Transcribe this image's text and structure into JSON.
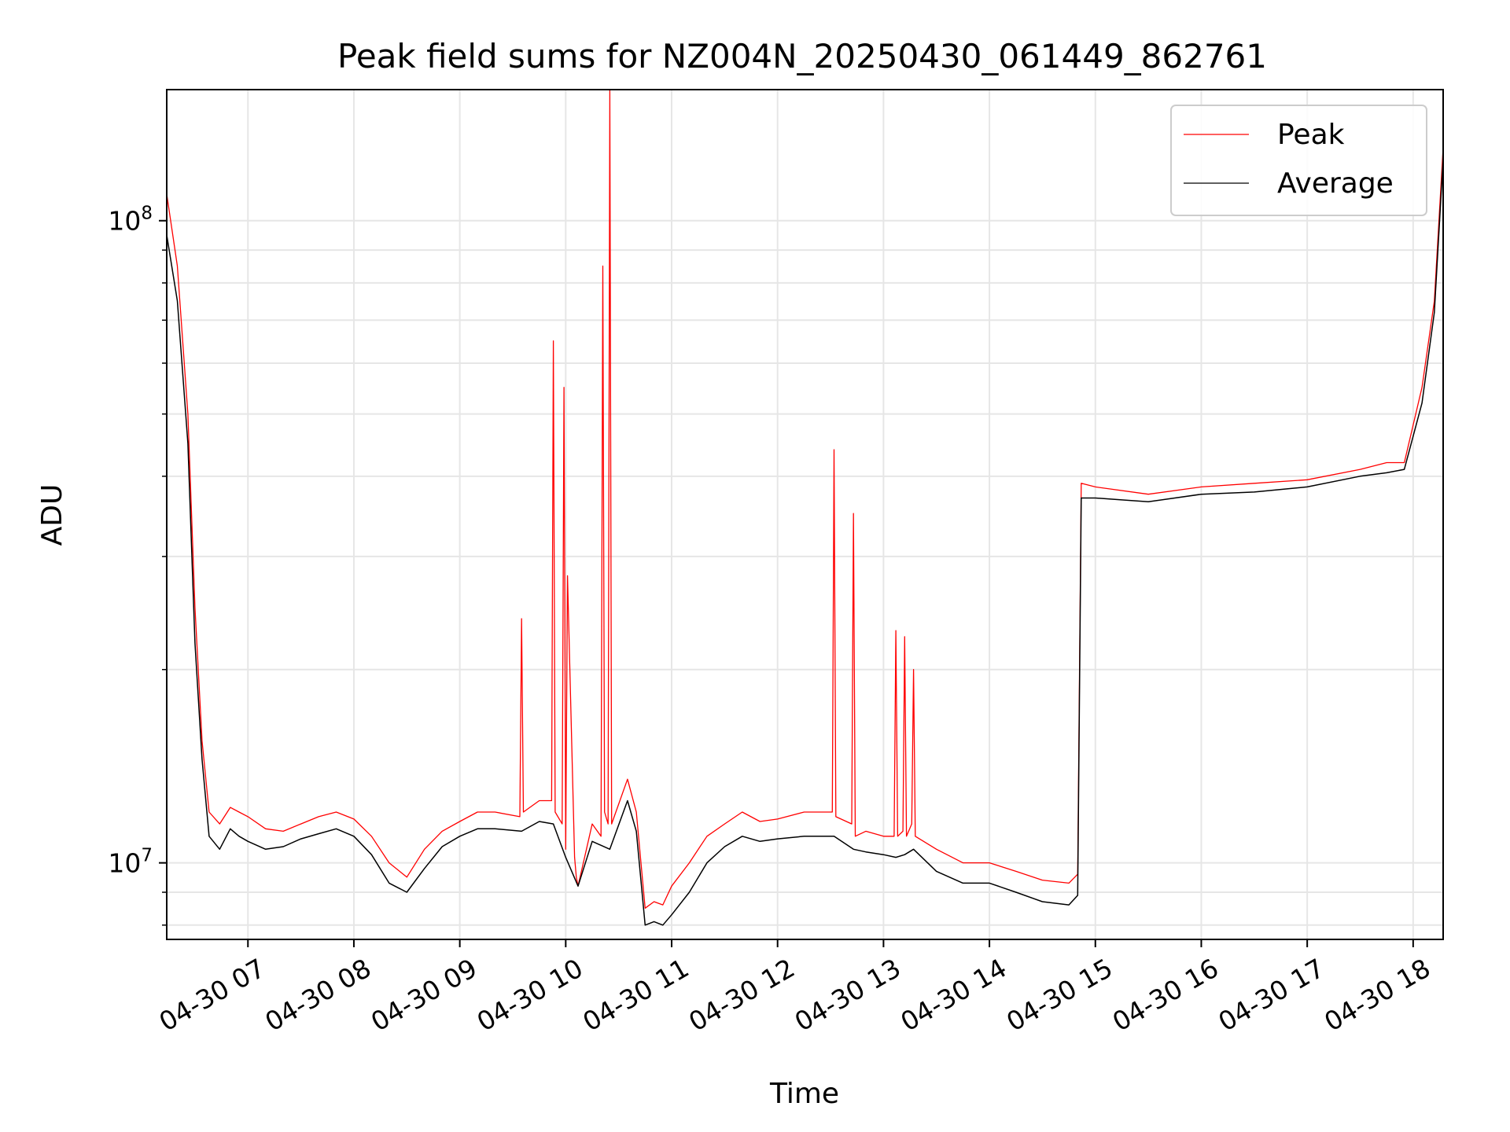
{
  "chart_data": {
    "type": "line",
    "title": "Peak field sums for NZ004N_20250430_061449_862761",
    "xlabel": "Time",
    "ylabel": "ADU",
    "yscale": "log",
    "ylim": [
      7600000,
      160000000
    ],
    "xlim": [
      "2025-04-30 06:14",
      "2025-04-30 18:17"
    ],
    "x_tick_labels": [
      "04-30 07",
      "04-30 08",
      "04-30 09",
      "04-30 10",
      "04-30 11",
      "04-30 12",
      "04-30 13",
      "04-30 14",
      "04-30 15",
      "04-30 16",
      "04-30 17",
      "04-30 18"
    ],
    "x_ticks": [
      "2025-04-30 07:00",
      "2025-04-30 08:00",
      "2025-04-30 09:00",
      "2025-04-30 10:00",
      "2025-04-30 11:00",
      "2025-04-30 12:00",
      "2025-04-30 13:00",
      "2025-04-30 14:00",
      "2025-04-30 15:00",
      "2025-04-30 16:00",
      "2025-04-30 17:00",
      "2025-04-30 18:00"
    ],
    "y_ticks": [
      {
        "value": 10000000,
        "label": "10",
        "exp": "7"
      },
      {
        "value": 100000000,
        "label": "10",
        "exp": "8"
      }
    ],
    "grid": true,
    "legend": "upper right",
    "series": [
      {
        "name": "Peak",
        "color": "#ff0000",
        "x": [
          "2025-04-30 06:14",
          "2025-04-30 06:20",
          "2025-04-30 06:26",
          "2025-04-30 06:30",
          "2025-04-30 06:34",
          "2025-04-30 06:38",
          "2025-04-30 06:44",
          "2025-04-30 06:50",
          "2025-04-30 06:55",
          "2025-04-30 07:00",
          "2025-04-30 07:10",
          "2025-04-30 07:20",
          "2025-04-30 07:30",
          "2025-04-30 07:40",
          "2025-04-30 07:50",
          "2025-04-30 08:00",
          "2025-04-30 08:10",
          "2025-04-30 08:20",
          "2025-04-30 08:30",
          "2025-04-30 08:40",
          "2025-04-30 08:50",
          "2025-04-30 09:00",
          "2025-04-30 09:10",
          "2025-04-30 09:20",
          "2025-04-30 09:34",
          "2025-04-30 09:35",
          "2025-04-30 09:36",
          "2025-04-30 09:45",
          "2025-04-30 09:52",
          "2025-04-30 09:53",
          "2025-04-30 09:54",
          "2025-04-30 09:58",
          "2025-04-30 09:59",
          "2025-04-30 10:00",
          "2025-04-30 10:01",
          "2025-04-30 10:05",
          "2025-04-30 10:06",
          "2025-04-30 10:07",
          "2025-04-30 10:15",
          "2025-04-30 10:20",
          "2025-04-30 10:21",
          "2025-04-30 10:22",
          "2025-04-30 10:24",
          "2025-04-30 10:25",
          "2025-04-30 10:26",
          "2025-04-30 10:35",
          "2025-04-30 10:40",
          "2025-04-30 10:45",
          "2025-04-30 10:50",
          "2025-04-30 10:55",
          "2025-04-30 11:00",
          "2025-04-30 11:10",
          "2025-04-30 11:20",
          "2025-04-30 11:30",
          "2025-04-30 11:40",
          "2025-04-30 11:50",
          "2025-04-30 12:00",
          "2025-04-30 12:15",
          "2025-04-30 12:31",
          "2025-04-30 12:32",
          "2025-04-30 12:33",
          "2025-04-30 12:42",
          "2025-04-30 12:43",
          "2025-04-30 12:44",
          "2025-04-30 12:50",
          "2025-04-30 13:00",
          "2025-04-30 13:06",
          "2025-04-30 13:07",
          "2025-04-30 13:08",
          "2025-04-30 13:11",
          "2025-04-30 13:12",
          "2025-04-30 13:13",
          "2025-04-30 13:16",
          "2025-04-30 13:17",
          "2025-04-30 13:18",
          "2025-04-30 13:30",
          "2025-04-30 13:45",
          "2025-04-30 14:00",
          "2025-04-30 14:15",
          "2025-04-30 14:30",
          "2025-04-30 14:45",
          "2025-04-30 14:50",
          "2025-04-30 14:52",
          "2025-04-30 15:00",
          "2025-04-30 15:30",
          "2025-04-30 16:00",
          "2025-04-30 16:30",
          "2025-04-30 17:00",
          "2025-04-30 17:30",
          "2025-04-30 17:45",
          "2025-04-30 17:55",
          "2025-04-30 18:05",
          "2025-04-30 18:12",
          "2025-04-30 18:17"
        ],
        "values": [
          110000000,
          85000000,
          50000000,
          25000000,
          15500000,
          12000000,
          11500000,
          12200000,
          12000000,
          11800000,
          11300000,
          11200000,
          11500000,
          11800000,
          12000000,
          11700000,
          11000000,
          10000000,
          9500000,
          10500000,
          11200000,
          11600000,
          12000000,
          12000000,
          11800000,
          24000000,
          12000000,
          12500000,
          12500000,
          65000000,
          12000000,
          11500000,
          55000000,
          10500000,
          28000000,
          10200000,
          9500000,
          9200000,
          11500000,
          11000000,
          85000000,
          12000000,
          11500000,
          160000000,
          11500000,
          13500000,
          12000000,
          8500000,
          8700000,
          8600000,
          9200000,
          10000000,
          11000000,
          11500000,
          12000000,
          11600000,
          11700000,
          12000000,
          12000000,
          44000000,
          11800000,
          11500000,
          35000000,
          11000000,
          11200000,
          11000000,
          11000000,
          23000000,
          11000000,
          11200000,
          22500000,
          11000000,
          11500000,
          20000000,
          11000000,
          10500000,
          10000000,
          10000000,
          9700000,
          9400000,
          9300000,
          9600000,
          39000000,
          38500000,
          37500000,
          38500000,
          39000000,
          39500000,
          41000000,
          42000000,
          42000000,
          55000000,
          75000000,
          130000000
        ]
      },
      {
        "name": "Average",
        "color": "#000000",
        "x": [
          "2025-04-30 06:14",
          "2025-04-30 06:20",
          "2025-04-30 06:26",
          "2025-04-30 06:30",
          "2025-04-30 06:34",
          "2025-04-30 06:38",
          "2025-04-30 06:44",
          "2025-04-30 06:50",
          "2025-04-30 06:55",
          "2025-04-30 07:00",
          "2025-04-30 07:10",
          "2025-04-30 07:20",
          "2025-04-30 07:30",
          "2025-04-30 07:40",
          "2025-04-30 07:50",
          "2025-04-30 08:00",
          "2025-04-30 08:10",
          "2025-04-30 08:20",
          "2025-04-30 08:30",
          "2025-04-30 08:40",
          "2025-04-30 08:50",
          "2025-04-30 09:00",
          "2025-04-30 09:10",
          "2025-04-30 09:20",
          "2025-04-30 09:35",
          "2025-04-30 09:45",
          "2025-04-30 09:53",
          "2025-04-30 10:00",
          "2025-04-30 10:07",
          "2025-04-30 10:15",
          "2025-04-30 10:25",
          "2025-04-30 10:35",
          "2025-04-30 10:40",
          "2025-04-30 10:45",
          "2025-04-30 10:50",
          "2025-04-30 10:55",
          "2025-04-30 11:00",
          "2025-04-30 11:10",
          "2025-04-30 11:20",
          "2025-04-30 11:30",
          "2025-04-30 11:40",
          "2025-04-30 11:50",
          "2025-04-30 12:00",
          "2025-04-30 12:15",
          "2025-04-30 12:32",
          "2025-04-30 12:43",
          "2025-04-30 12:50",
          "2025-04-30 13:00",
          "2025-04-30 13:07",
          "2025-04-30 13:12",
          "2025-04-30 13:17",
          "2025-04-30 13:30",
          "2025-04-30 13:45",
          "2025-04-30 14:00",
          "2025-04-30 14:15",
          "2025-04-30 14:30",
          "2025-04-30 14:45",
          "2025-04-30 14:50",
          "2025-04-30 14:52",
          "2025-04-30 15:00",
          "2025-04-30 15:30",
          "2025-04-30 16:00",
          "2025-04-30 16:30",
          "2025-04-30 17:00",
          "2025-04-30 17:30",
          "2025-04-30 17:45",
          "2025-04-30 17:55",
          "2025-04-30 18:05",
          "2025-04-30 18:12",
          "2025-04-30 18:17"
        ],
        "values": [
          95000000,
          75000000,
          45000000,
          22000000,
          14500000,
          11000000,
          10500000,
          11300000,
          11000000,
          10800000,
          10500000,
          10600000,
          10900000,
          11100000,
          11300000,
          11000000,
          10300000,
          9300000,
          9000000,
          9800000,
          10600000,
          11000000,
          11300000,
          11300000,
          11200000,
          11600000,
          11500000,
          10200000,
          9200000,
          10800000,
          10500000,
          12500000,
          11200000,
          8000000,
          8100000,
          8000000,
          8300000,
          9000000,
          10000000,
          10600000,
          11000000,
          10800000,
          10900000,
          11000000,
          11000000,
          10500000,
          10400000,
          10300000,
          10200000,
          10300000,
          10500000,
          9700000,
          9300000,
          9300000,
          9000000,
          8700000,
          8600000,
          8900000,
          37000000,
          37000000,
          36500000,
          37500000,
          37800000,
          38500000,
          40000000,
          40500000,
          41000000,
          52000000,
          72000000,
          125000000
        ]
      }
    ]
  }
}
